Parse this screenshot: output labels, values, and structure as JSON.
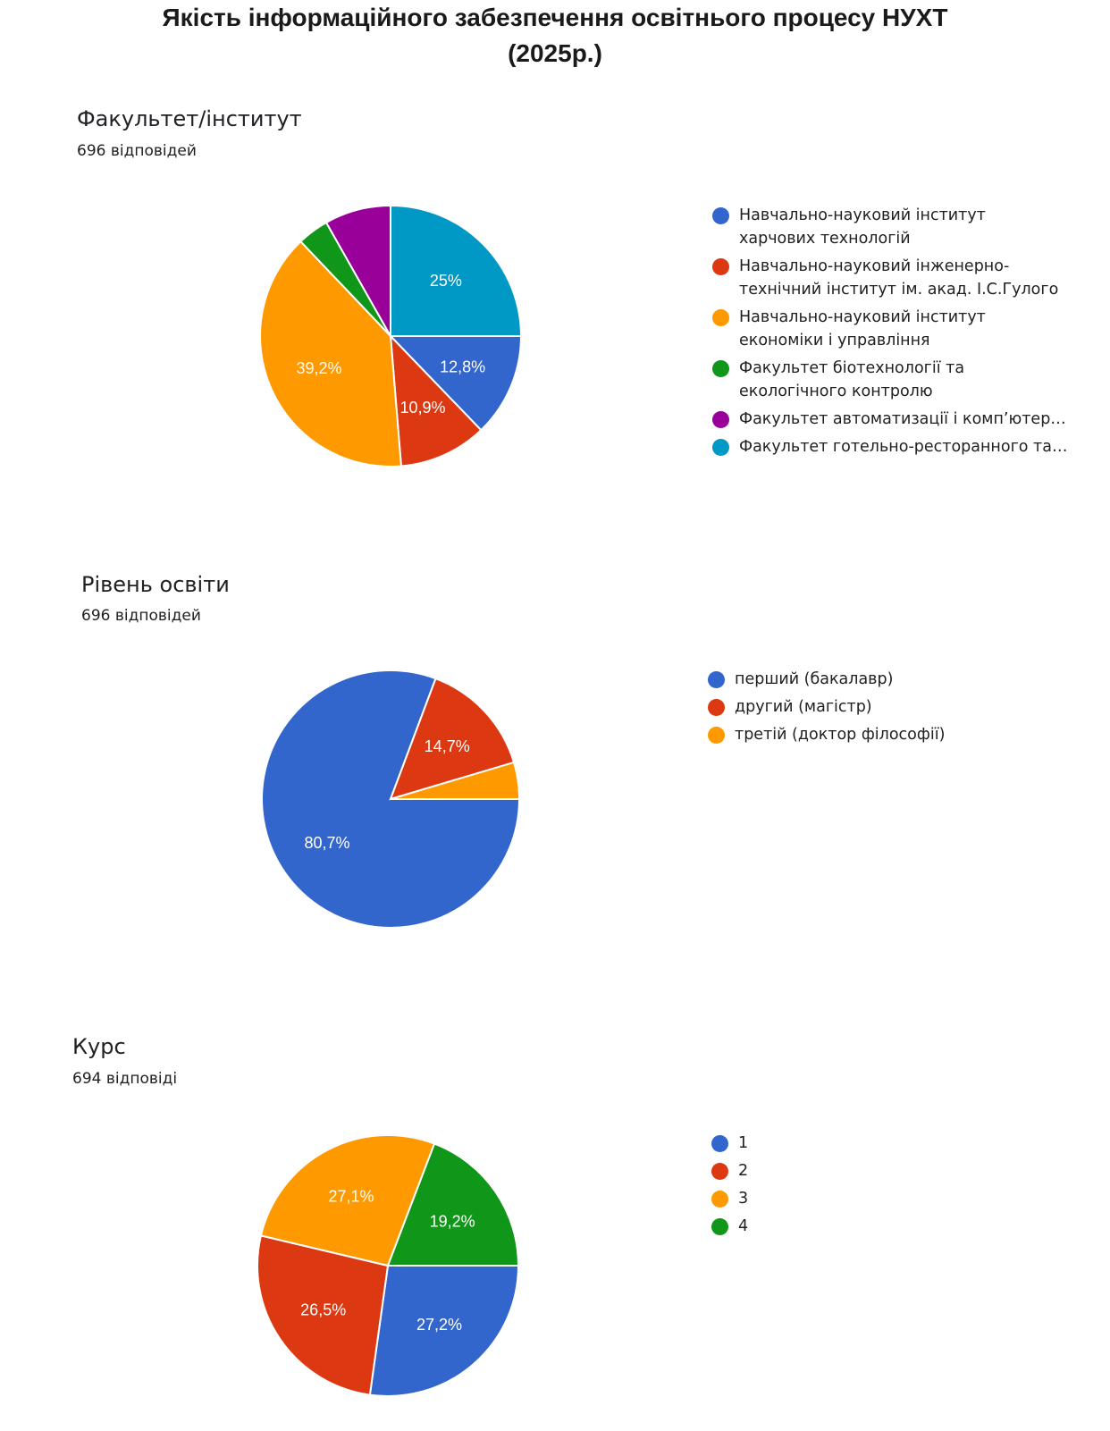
{
  "page": {
    "title_line1": "Якість інформаційного забезпечення освітнього процесу НУХТ",
    "title_line2": "(2025р.)"
  },
  "chart_data": [
    {
      "type": "pie",
      "title": "Факультет/інститут",
      "subtitle": "696 відповідей",
      "legend_position": "right",
      "slices": [
        {
          "label": "Навчально-науковий інститут харчових технологій",
          "value": 12.8,
          "value_label": "12,8%",
          "color": "#3366cc"
        },
        {
          "label": "Навчально-науковий інженерно-технічний інститут ім. акад. І.С.Гулого",
          "value": 10.9,
          "value_label": "10,9%",
          "color": "#dc3912"
        },
        {
          "label": "Навчально-науковий інститут економіки і управління",
          "value": 39.2,
          "value_label": "39,2%",
          "color": "#ff9900"
        },
        {
          "label": "Факультет біотехнології та екологічного контролю",
          "value": 3.9,
          "value_label": "",
          "color": "#109618"
        },
        {
          "label": "Факультет автоматизації і комп’ютер…",
          "value": 8.2,
          "value_label": "",
          "color": "#990099"
        },
        {
          "label": "Факультет готельно-ресторанного та…",
          "value": 25,
          "value_label": "25%",
          "color": "#0099c6"
        }
      ]
    },
    {
      "type": "pie",
      "title": "Рівень освіти",
      "subtitle": "696 відповідей",
      "legend_position": "right",
      "slices": [
        {
          "label": "перший (бакалавр)",
          "value": 80.7,
          "value_label": "80,7%",
          "color": "#3366cc"
        },
        {
          "label": "другий (магістр)",
          "value": 14.7,
          "value_label": "14,7%",
          "color": "#dc3912"
        },
        {
          "label": "третій (доктор філософії)",
          "value": 4.6,
          "value_label": "",
          "color": "#ff9900"
        }
      ]
    },
    {
      "type": "pie",
      "title": "Курс",
      "subtitle": "694 відповіді",
      "legend_position": "right",
      "slices": [
        {
          "label": "1",
          "value": 27.2,
          "value_label": "27,2%",
          "color": "#3366cc"
        },
        {
          "label": "2",
          "value": 26.5,
          "value_label": "26,5%",
          "color": "#dc3912"
        },
        {
          "label": "3",
          "value": 27.1,
          "value_label": "27,1%",
          "color": "#ff9900"
        },
        {
          "label": "4",
          "value": 19.2,
          "value_label": "19,2%",
          "color": "#109618"
        }
      ]
    }
  ]
}
